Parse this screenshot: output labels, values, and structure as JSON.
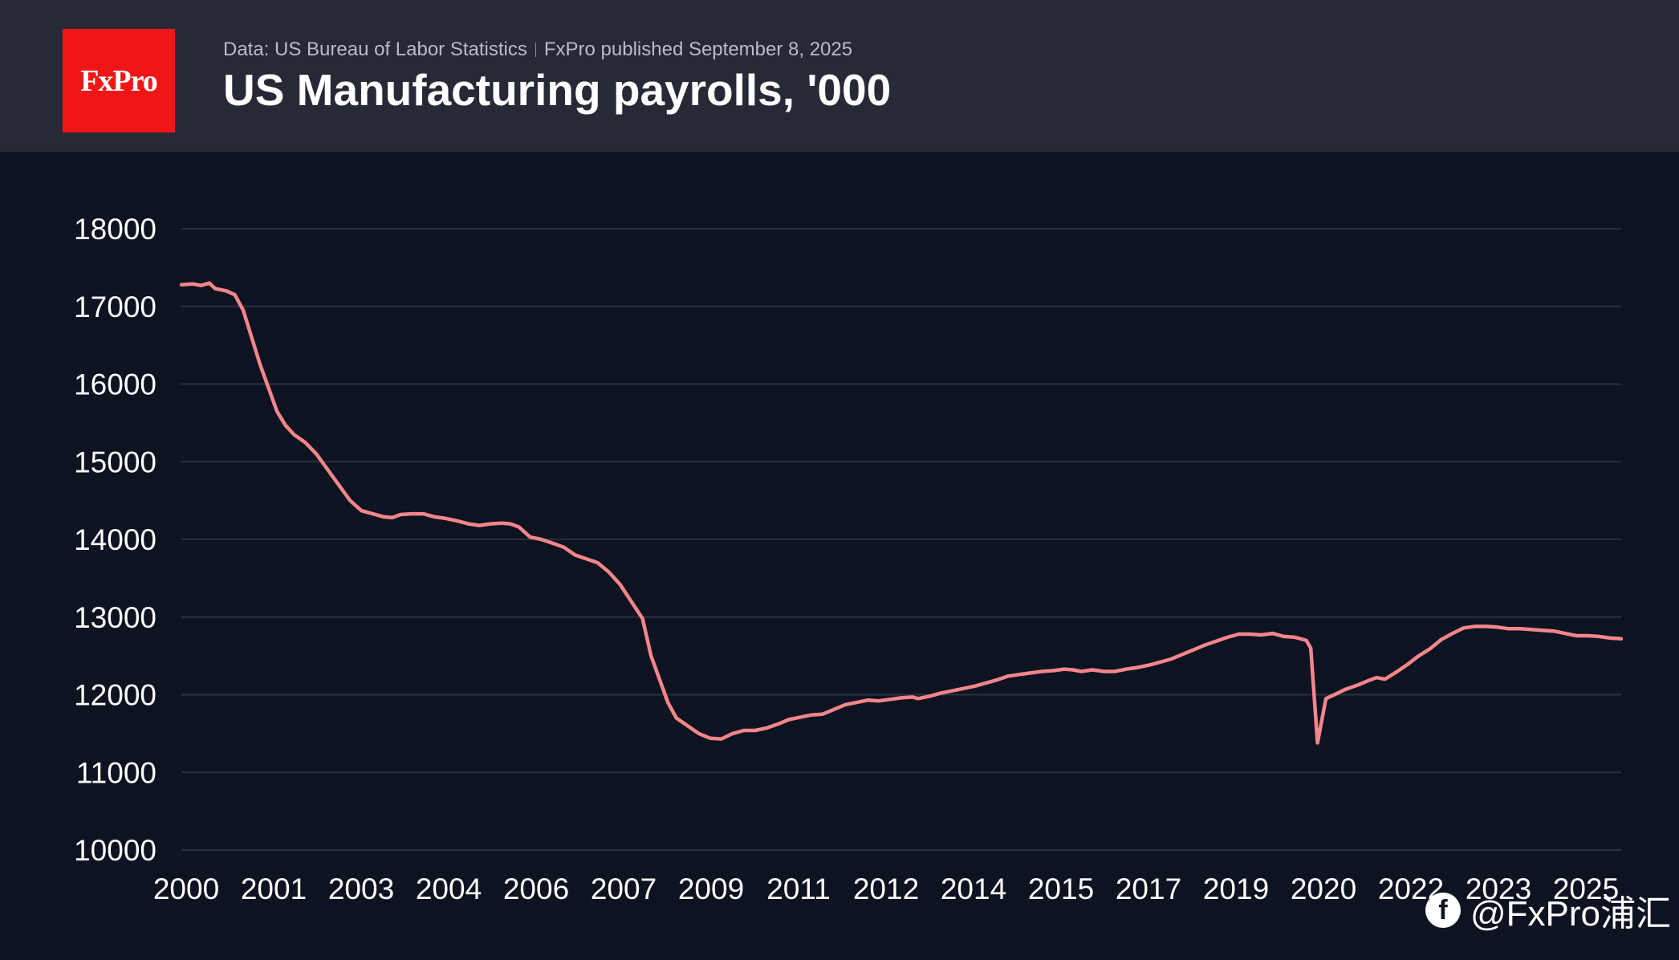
{
  "header": {
    "logo_text": "FxPro",
    "source": "Data: US Bureau of Labor Statistics",
    "published": "FxPro published September 8, 2025",
    "title": "US Manufacturing payrolls, '000"
  },
  "watermark": {
    "icon": "facebook-icon",
    "text": "@FxPro浦汇"
  },
  "colors": {
    "background": "#0d1320",
    "header": "#272a36",
    "logo": "#f11616",
    "line": "#f4868b",
    "grid": "#2a3040",
    "text": "#ffffff"
  },
  "chart_data": {
    "type": "line",
    "title": "US Manufacturing payrolls, '000",
    "xlabel": "",
    "ylabel": "",
    "ylim": [
      10000,
      18000
    ],
    "xlim": [
      2000.0,
      2025.6
    ],
    "yticks": [
      10000,
      11000,
      12000,
      13000,
      14000,
      15000,
      16000,
      17000,
      18000
    ],
    "xtick_labels": [
      "2000",
      "2001",
      "2003",
      "2004",
      "2006",
      "2007",
      "2009",
      "2011",
      "2012",
      "2014",
      "2015",
      "2017",
      "2019",
      "2020",
      "2022",
      "2023",
      "2025"
    ],
    "grid": true,
    "legend": "none",
    "series": [
      {
        "points": [
          [
            2000.0,
            17280
          ],
          [
            2000.2,
            17290
          ],
          [
            2000.35,
            17270
          ],
          [
            2000.5,
            17300
          ],
          [
            2000.6,
            17230
          ],
          [
            2000.8,
            17200
          ],
          [
            2000.95,
            17150
          ],
          [
            2001.1,
            16950
          ],
          [
            2001.25,
            16600
          ],
          [
            2001.4,
            16250
          ],
          [
            2001.55,
            15950
          ],
          [
            2001.7,
            15650
          ],
          [
            2001.85,
            15470
          ],
          [
            2002.0,
            15350
          ],
          [
            2002.2,
            15250
          ],
          [
            2002.4,
            15100
          ],
          [
            2002.6,
            14900
          ],
          [
            2002.8,
            14700
          ],
          [
            2003.0,
            14500
          ],
          [
            2003.2,
            14370
          ],
          [
            2003.4,
            14330
          ],
          [
            2003.6,
            14290
          ],
          [
            2003.75,
            14280
          ],
          [
            2003.9,
            14320
          ],
          [
            2004.1,
            14330
          ],
          [
            2004.3,
            14330
          ],
          [
            2004.5,
            14290
          ],
          [
            2004.7,
            14270
          ],
          [
            2004.9,
            14240
          ],
          [
            2005.1,
            14200
          ],
          [
            2005.3,
            14180
          ],
          [
            2005.5,
            14200
          ],
          [
            2005.7,
            14210
          ],
          [
            2005.85,
            14200
          ],
          [
            2006.0,
            14160
          ],
          [
            2006.2,
            14030
          ],
          [
            2006.4,
            14000
          ],
          [
            2006.6,
            13950
          ],
          [
            2006.8,
            13900
          ],
          [
            2007.0,
            13800
          ],
          [
            2007.2,
            13750
          ],
          [
            2007.4,
            13700
          ],
          [
            2007.6,
            13580
          ],
          [
            2007.8,
            13420
          ],
          [
            2008.0,
            13200
          ],
          [
            2008.2,
            12980
          ],
          [
            2008.35,
            12500
          ],
          [
            2008.5,
            12200
          ],
          [
            2008.65,
            11900
          ],
          [
            2008.8,
            11700
          ],
          [
            2009.0,
            11600
          ],
          [
            2009.2,
            11500
          ],
          [
            2009.4,
            11440
          ],
          [
            2009.6,
            11430
          ],
          [
            2009.8,
            11500
          ],
          [
            2010.0,
            11540
          ],
          [
            2010.2,
            11540
          ],
          [
            2010.4,
            11570
          ],
          [
            2010.6,
            11620
          ],
          [
            2010.8,
            11680
          ],
          [
            2011.0,
            11710
          ],
          [
            2011.2,
            11740
          ],
          [
            2011.4,
            11750
          ],
          [
            2011.6,
            11810
          ],
          [
            2011.8,
            11870
          ],
          [
            2012.0,
            11900
          ],
          [
            2012.2,
            11930
          ],
          [
            2012.4,
            11920
          ],
          [
            2012.6,
            11940
          ],
          [
            2012.8,
            11960
          ],
          [
            2013.0,
            11970
          ],
          [
            2013.1,
            11950
          ],
          [
            2013.3,
            11980
          ],
          [
            2013.5,
            12020
          ],
          [
            2013.7,
            12050
          ],
          [
            2013.9,
            12080
          ],
          [
            2014.1,
            12110
          ],
          [
            2014.3,
            12150
          ],
          [
            2014.5,
            12190
          ],
          [
            2014.7,
            12240
          ],
          [
            2014.9,
            12260
          ],
          [
            2015.1,
            12280
          ],
          [
            2015.3,
            12300
          ],
          [
            2015.5,
            12310
          ],
          [
            2015.7,
            12330
          ],
          [
            2015.85,
            12320
          ],
          [
            2016.0,
            12300
          ],
          [
            2016.2,
            12320
          ],
          [
            2016.4,
            12300
          ],
          [
            2016.6,
            12300
          ],
          [
            2016.8,
            12330
          ],
          [
            2017.0,
            12350
          ],
          [
            2017.2,
            12380
          ],
          [
            2017.4,
            12420
          ],
          [
            2017.6,
            12460
          ],
          [
            2017.8,
            12520
          ],
          [
            2018.0,
            12580
          ],
          [
            2018.2,
            12640
          ],
          [
            2018.4,
            12690
          ],
          [
            2018.6,
            12740
          ],
          [
            2018.8,
            12780
          ],
          [
            2019.0,
            12780
          ],
          [
            2019.2,
            12770
          ],
          [
            2019.4,
            12790
          ],
          [
            2019.6,
            12750
          ],
          [
            2019.8,
            12740
          ],
          [
            2020.0,
            12700
          ],
          [
            2020.08,
            12600
          ],
          [
            2020.2,
            11380
          ],
          [
            2020.35,
            11950
          ],
          [
            2020.5,
            12000
          ],
          [
            2020.7,
            12070
          ],
          [
            2020.9,
            12120
          ],
          [
            2021.1,
            12180
          ],
          [
            2021.25,
            12220
          ],
          [
            2021.4,
            12200
          ],
          [
            2021.6,
            12290
          ],
          [
            2021.8,
            12390
          ],
          [
            2022.0,
            12500
          ],
          [
            2022.2,
            12590
          ],
          [
            2022.4,
            12710
          ],
          [
            2022.6,
            12790
          ],
          [
            2022.8,
            12860
          ],
          [
            2023.0,
            12880
          ],
          [
            2023.2,
            12880
          ],
          [
            2023.4,
            12870
          ],
          [
            2023.6,
            12850
          ],
          [
            2023.8,
            12850
          ],
          [
            2024.0,
            12840
          ],
          [
            2024.2,
            12830
          ],
          [
            2024.4,
            12820
          ],
          [
            2024.6,
            12790
          ],
          [
            2024.8,
            12760
          ],
          [
            2025.0,
            12760
          ],
          [
            2025.2,
            12750
          ],
          [
            2025.4,
            12730
          ],
          [
            2025.6,
            12720
          ]
        ]
      }
    ]
  }
}
